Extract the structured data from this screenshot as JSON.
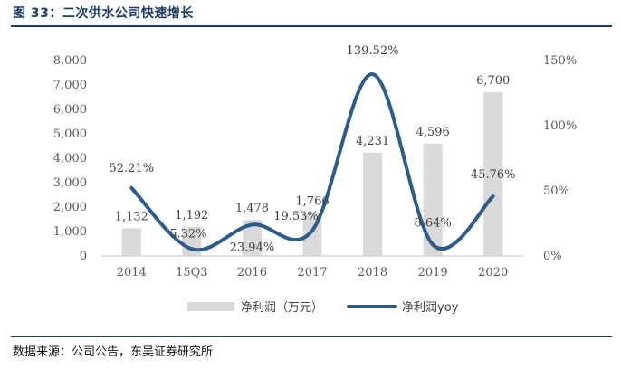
{
  "header": {
    "title": "图 33：二次供水公司快速增长"
  },
  "footer": {
    "source": "数据来源：公司公告，东吴证券研究所"
  },
  "colors": {
    "bar": "#d9d9d9",
    "line": "#2e5c8a",
    "title": "#1f3b63"
  },
  "chart_data": {
    "type": "bar",
    "title": "",
    "categories": [
      "2014",
      "15Q3",
      "2016",
      "2017",
      "2018",
      "2019",
      "2020"
    ],
    "series": [
      {
        "name": "净利润（万元）",
        "type": "bar",
        "axis": "left",
        "values": [
          1132,
          1192,
          1478,
          1766,
          4231,
          4596,
          6700
        ],
        "labels": [
          "1,132",
          "1,192",
          "1,478",
          "1,766",
          "4,231",
          "4,596",
          "6,700"
        ]
      },
      {
        "name": "净利润yoy",
        "type": "line",
        "axis": "right",
        "values": [
          52.21,
          5.32,
          23.94,
          19.53,
          139.52,
          8.64,
          45.76
        ],
        "labels": [
          "52.21%",
          "5.32%",
          "23.94%",
          "19.53%",
          "139.52%",
          "8.64%",
          "45.76%"
        ]
      }
    ],
    "y_left": {
      "lim": [
        0,
        8000
      ],
      "ticks": [
        "0",
        "1,000",
        "2,000",
        "3,000",
        "4,000",
        "5,000",
        "6,000",
        "7,000",
        "8,000"
      ]
    },
    "y_right": {
      "lim": [
        0,
        150
      ],
      "ticks": [
        "0%",
        "50%",
        "100%",
        "150%"
      ]
    },
    "grid": false,
    "legend": "bottom"
  }
}
